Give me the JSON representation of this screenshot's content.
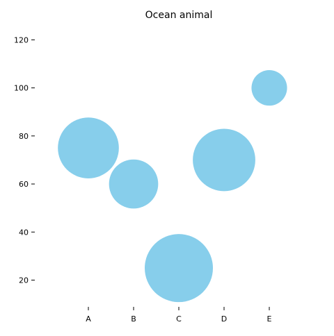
{
  "chart_data": {
    "type": "scatter",
    "title": "Ocean animal",
    "xlabel": "",
    "ylabel": "",
    "categories": [
      "A",
      "B",
      "C",
      "D",
      "E"
    ],
    "values": [
      75,
      60,
      25,
      70,
      100
    ],
    "bubble_size_relative": [
      1.0,
      0.65,
      1.25,
      1.05,
      0.34
    ],
    "ylim": [
      8,
      123
    ],
    "yticks": [
      20,
      40,
      60,
      80,
      100,
      120
    ],
    "grid": false,
    "legend": "none",
    "colors": {
      "marker": "#87ceeb",
      "axis": "#000000"
    }
  }
}
